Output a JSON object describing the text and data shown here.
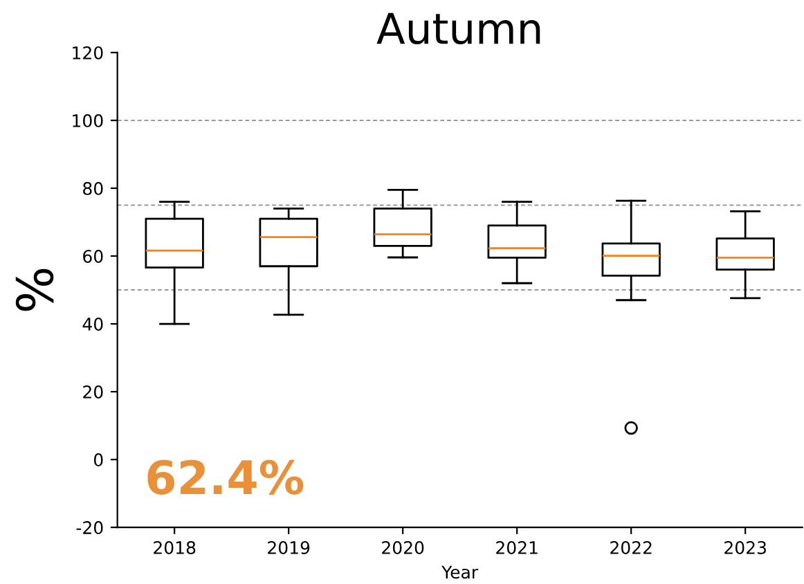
{
  "chart_data": {
    "type": "box",
    "title": "Autumn",
    "xlabel": "Year",
    "ylabel": "%",
    "categories": [
      "2018",
      "2019",
      "2020",
      "2021",
      "2022",
      "2023"
    ],
    "boxes": [
      {
        "low": 40,
        "q1": 56.6,
        "median": 61.6,
        "q3": 71,
        "high": 76
      },
      {
        "low": 42.7,
        "q1": 57,
        "median": 65.6,
        "q3": 71,
        "high": 74
      },
      {
        "low": 59.6,
        "q1": 63,
        "median": 66.4,
        "q3": 74,
        "high": 79.5
      },
      {
        "low": 52,
        "q1": 59.5,
        "median": 62.3,
        "q3": 69,
        "high": 76
      },
      {
        "low": 47,
        "q1": 54.2,
        "median": 60.1,
        "q3": 63.7,
        "high": 76.3,
        "outliers": [
          9.3
        ]
      },
      {
        "low": 47.6,
        "q1": 56,
        "median": 59.5,
        "q3": 65.2,
        "high": 73.2
      }
    ],
    "ylim": [
      -20,
      120
    ],
    "yticks": [
      -20,
      0,
      20,
      40,
      60,
      80,
      100,
      120
    ],
    "ref_lines": [
      {
        "axis": "y",
        "value": 100,
        "color": "#999999",
        "line_style": "dashed"
      },
      {
        "axis": "y",
        "value": 75,
        "color": "#999999",
        "line_style": "dashed"
      },
      {
        "axis": "y",
        "value": 50,
        "color": "#999999",
        "line_style": "dashed"
      }
    ],
    "annotations": [
      "62.4%"
    ],
    "grid": false
  }
}
